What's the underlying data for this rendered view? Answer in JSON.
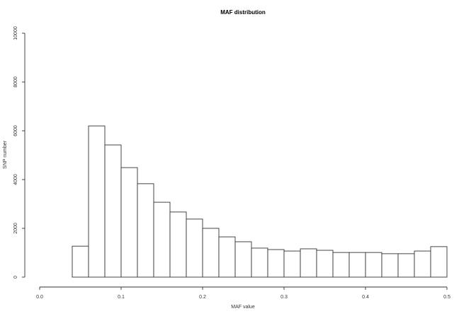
{
  "chart_data": {
    "type": "bar",
    "title": "MAF distribution",
    "xlabel": "MAF value",
    "ylabel": "SNP number",
    "xlim": [
      0,
      0.5
    ],
    "ylim": [
      0,
      10000
    ],
    "x_ticks": [
      "0.0",
      "0.1",
      "0.2",
      "0.3",
      "0.4",
      "0.5"
    ],
    "y_ticks": [
      "0",
      "2000",
      "4000",
      "6000",
      "8000",
      "10000"
    ],
    "grid": false,
    "bin_edges": [
      0.04,
      0.06,
      0.08,
      0.1,
      0.12,
      0.14,
      0.16,
      0.18,
      0.2,
      0.22,
      0.24,
      0.26,
      0.28,
      0.3,
      0.32,
      0.34,
      0.36,
      0.38,
      0.4,
      0.42,
      0.44,
      0.46,
      0.48,
      0.5
    ],
    "values": [
      1270,
      6200,
      5420,
      4490,
      3830,
      3070,
      2670,
      2380,
      2000,
      1650,
      1450,
      1190,
      1130,
      1070,
      1160,
      1100,
      1010,
      1010,
      1010,
      960,
      960,
      1070,
      1250
    ],
    "colors": {
      "bar_fill": "#ffffff",
      "bar_stroke": "#333333"
    }
  }
}
